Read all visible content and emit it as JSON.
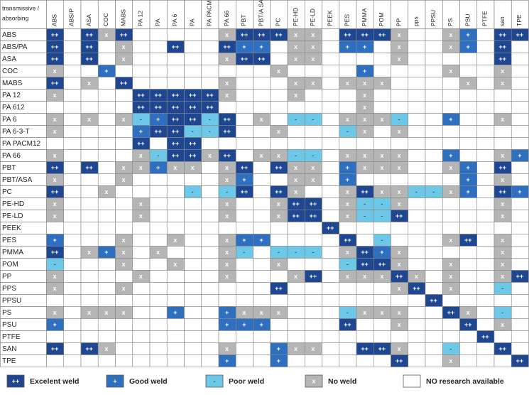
{
  "table": {
    "corner": [
      "transmissive /",
      "absorbing"
    ],
    "columns": [
      "ABS",
      "ABS/P",
      "ASA",
      "COC",
      "MABS",
      "PA 12",
      "PA",
      "PA 6",
      "PA",
      "PA PACM",
      "PA 66",
      "PBT",
      "PBT/A SA",
      "PC",
      "PE-HD",
      "PE-LD",
      "PEEK",
      "PES",
      "PMMA",
      "POM",
      "PP",
      "pps",
      "PPSU",
      "PS",
      "PSU",
      "PTFE",
      "san",
      "TPE"
    ],
    "rows": [
      {
        "label": "ABS",
        "cells": [
          "++",
          null,
          "++",
          "x",
          "++",
          null,
          null,
          null,
          null,
          null,
          "x",
          "++",
          "++",
          "++",
          "x",
          "x",
          null,
          "++",
          "++",
          "++",
          "x",
          null,
          null,
          "x",
          "+",
          null,
          "++",
          "++"
        ]
      },
      {
        "label": "ABS/PA",
        "cells": [
          "++",
          null,
          "++",
          null,
          "x",
          null,
          null,
          "++",
          null,
          null,
          "++",
          "+",
          "+",
          null,
          "x",
          "x",
          null,
          "+",
          "+",
          null,
          "x",
          null,
          null,
          "x",
          "+",
          null,
          "++",
          null
        ]
      },
      {
        "label": "ASA",
        "cells": [
          "++",
          null,
          "++",
          null,
          "x",
          null,
          null,
          null,
          null,
          null,
          "x",
          "++",
          "++",
          null,
          "x",
          "x",
          null,
          null,
          null,
          null,
          "x",
          null,
          null,
          null,
          null,
          null,
          "++",
          null
        ]
      },
      {
        "label": "COC",
        "cells": [
          "x",
          null,
          null,
          "+",
          null,
          null,
          null,
          null,
          null,
          null,
          null,
          null,
          null,
          "x",
          null,
          null,
          null,
          null,
          "+",
          null,
          null,
          null,
          null,
          "x",
          null,
          null,
          "x",
          null
        ]
      },
      {
        "label": "MABS",
        "cells": [
          "++",
          null,
          "x",
          null,
          "++",
          null,
          null,
          null,
          null,
          null,
          "x",
          null,
          null,
          null,
          "x",
          "x",
          null,
          "x",
          "x",
          "x",
          null,
          null,
          null,
          null,
          "x",
          null,
          "x",
          null
        ]
      },
      {
        "label": "PA 12",
        "cells": [
          "x",
          null,
          null,
          null,
          null,
          "++",
          "++",
          "++",
          "++",
          "++",
          "x",
          null,
          null,
          null,
          "x",
          null,
          null,
          null,
          "x",
          null,
          null,
          null,
          null,
          null,
          null,
          null,
          null,
          null
        ]
      },
      {
        "label": "PA 612",
        "cells": [
          null,
          null,
          null,
          null,
          null,
          "++",
          "++",
          "++",
          "++",
          "++",
          null,
          null,
          null,
          null,
          null,
          null,
          null,
          null,
          "x",
          null,
          null,
          null,
          null,
          null,
          null,
          null,
          null,
          null
        ]
      },
      {
        "label": "PA 6",
        "cells": [
          "x",
          null,
          "x",
          null,
          "x",
          "-",
          "+",
          "++",
          "++",
          "-",
          "++",
          null,
          "x",
          null,
          "-",
          "-",
          null,
          "x",
          "x",
          "x",
          "-",
          null,
          null,
          "+",
          null,
          null,
          "x",
          null
        ]
      },
      {
        "label": "PA 6-3-T",
        "cells": [
          "x",
          null,
          null,
          null,
          null,
          "+",
          "++",
          "++",
          "-",
          "-",
          "++",
          null,
          null,
          "x",
          null,
          null,
          null,
          "-",
          "x",
          null,
          "x",
          null,
          null,
          null,
          null,
          null,
          null,
          null
        ]
      },
      {
        "label": "PA PACM12",
        "cells": [
          null,
          null,
          null,
          null,
          null,
          "++",
          null,
          "++",
          "++",
          null,
          null,
          null,
          null,
          null,
          null,
          null,
          null,
          null,
          null,
          null,
          null,
          null,
          null,
          null,
          null,
          null,
          null,
          null
        ]
      },
      {
        "label": "PA 66",
        "cells": [
          "x",
          null,
          null,
          null,
          null,
          "x",
          "-",
          "++",
          "++",
          "x",
          "++",
          null,
          "x",
          "x",
          "-",
          "-",
          null,
          "x",
          "x",
          "x",
          "x",
          null,
          null,
          "+",
          null,
          null,
          "x",
          "+"
        ]
      },
      {
        "label": "PBT",
        "cells": [
          "++",
          null,
          "++",
          null,
          "x",
          "x",
          "+",
          "x",
          "x",
          null,
          "x",
          "++",
          null,
          "++",
          "x",
          "x",
          null,
          "+",
          "x",
          "x",
          "x",
          null,
          null,
          "x",
          "+",
          null,
          "++",
          null
        ]
      },
      {
        "label": "PBT/ASA",
        "cells": [
          "x",
          null,
          null,
          null,
          "x",
          null,
          null,
          null,
          null,
          null,
          "x",
          "+",
          null,
          null,
          "x",
          "x",
          null,
          "+",
          null,
          null,
          null,
          null,
          null,
          null,
          "+",
          null,
          "x",
          null
        ]
      },
      {
        "label": "PC",
        "cells": [
          "++",
          null,
          null,
          "x",
          null,
          null,
          null,
          null,
          "-",
          null,
          "-",
          "++",
          null,
          "++",
          "x",
          null,
          null,
          "x",
          "++",
          "x",
          "x",
          "-",
          "-",
          "x",
          "+",
          null,
          "++",
          "+"
        ]
      },
      {
        "label": "PE-HD",
        "cells": [
          "x",
          null,
          null,
          null,
          null,
          "x",
          null,
          null,
          null,
          null,
          "x",
          null,
          null,
          "x",
          "++",
          "++",
          null,
          "x",
          "-",
          "-",
          "x",
          null,
          null,
          null,
          null,
          null,
          "x",
          null
        ]
      },
      {
        "label": "PE-LD",
        "cells": [
          "x",
          null,
          null,
          null,
          null,
          "x",
          null,
          null,
          null,
          null,
          "x",
          null,
          null,
          "x",
          "++",
          "++",
          null,
          "x",
          "-",
          "-",
          "++",
          null,
          null,
          null,
          null,
          null,
          "x",
          null
        ]
      },
      {
        "label": "PEEK",
        "cells": [
          null,
          null,
          null,
          null,
          null,
          null,
          null,
          null,
          null,
          null,
          null,
          null,
          null,
          null,
          null,
          null,
          "++",
          null,
          null,
          null,
          null,
          null,
          null,
          null,
          null,
          null,
          null,
          null
        ]
      },
      {
        "label": "PES",
        "cells": [
          "+",
          null,
          null,
          null,
          "x",
          null,
          null,
          "x",
          null,
          null,
          "x",
          "+",
          "+",
          null,
          null,
          null,
          null,
          "++",
          null,
          "-",
          null,
          null,
          null,
          "x",
          "++",
          null,
          "x",
          null
        ]
      },
      {
        "label": "PMMA",
        "cells": [
          "++",
          null,
          "x",
          "+",
          "x",
          null,
          "x",
          null,
          null,
          null,
          "x",
          "-",
          null,
          "-",
          "-",
          "-",
          null,
          "x",
          "++",
          "+",
          "x",
          null,
          null,
          null,
          null,
          null,
          "x",
          null
        ]
      },
      {
        "label": "POM",
        "cells": [
          "-",
          null,
          null,
          null,
          "x",
          null,
          null,
          "x",
          null,
          null,
          "x",
          null,
          null,
          "x",
          null,
          null,
          null,
          "-",
          "++",
          "++",
          "x",
          null,
          null,
          "x",
          null,
          null,
          "x",
          null
        ]
      },
      {
        "label": "PP",
        "cells": [
          "x",
          null,
          null,
          null,
          null,
          "x",
          null,
          null,
          null,
          null,
          "x",
          null,
          null,
          null,
          "x",
          "++",
          null,
          "x",
          "x",
          "x",
          "++",
          "x",
          null,
          "x",
          null,
          null,
          "x",
          "++"
        ]
      },
      {
        "label": "PPS",
        "cells": [
          "x",
          null,
          null,
          null,
          "x",
          null,
          null,
          null,
          null,
          null,
          null,
          null,
          null,
          "++",
          null,
          null,
          null,
          null,
          null,
          null,
          "x",
          "++",
          null,
          "x",
          null,
          null,
          "-",
          null
        ]
      },
      {
        "label": "PPSU",
        "cells": [
          null,
          null,
          null,
          null,
          null,
          null,
          null,
          null,
          null,
          null,
          null,
          null,
          null,
          null,
          null,
          null,
          null,
          null,
          null,
          null,
          null,
          null,
          "++",
          null,
          null,
          null,
          null,
          null
        ]
      },
      {
        "label": "PS",
        "cells": [
          "x",
          null,
          "x",
          "x",
          "x",
          null,
          null,
          "+",
          null,
          null,
          "+",
          "x",
          "x",
          "x",
          null,
          null,
          null,
          "-",
          "x",
          "x",
          "x",
          null,
          null,
          "++",
          "x",
          null,
          "-",
          null
        ]
      },
      {
        "label": "PSU",
        "cells": [
          "+",
          null,
          null,
          null,
          null,
          null,
          null,
          null,
          null,
          null,
          "+",
          "+",
          "+",
          null,
          null,
          null,
          null,
          "++",
          null,
          null,
          "x",
          null,
          null,
          null,
          "++",
          null,
          "x",
          null
        ]
      },
      {
        "label": "PTFE",
        "cells": [
          null,
          null,
          null,
          null,
          null,
          null,
          null,
          null,
          null,
          null,
          null,
          null,
          null,
          null,
          null,
          null,
          null,
          null,
          null,
          null,
          null,
          null,
          null,
          null,
          null,
          "++",
          null,
          null
        ]
      },
      {
        "label": "SAN",
        "cells": [
          "++",
          null,
          "++",
          "x",
          null,
          null,
          null,
          null,
          null,
          null,
          "x",
          null,
          null,
          "+",
          "x",
          "x",
          null,
          null,
          "++",
          "++",
          "x",
          null,
          null,
          "-",
          null,
          null,
          "++",
          null
        ]
      },
      {
        "label": "TPE",
        "cells": [
          null,
          null,
          null,
          null,
          null,
          null,
          null,
          null,
          null,
          null,
          "+",
          null,
          null,
          "+",
          null,
          null,
          null,
          null,
          null,
          null,
          "++",
          null,
          null,
          "x",
          null,
          null,
          null,
          "++"
        ]
      }
    ]
  },
  "legend": [
    {
      "symbol": "++",
      "label": "Excelent weld",
      "color": "#1f4690"
    },
    {
      "symbol": "+",
      "label": "Good weld",
      "color": "#2f6fc0"
    },
    {
      "symbol": "-",
      "label": "Poor weld",
      "color": "#6cc8e6"
    },
    {
      "symbol": "x",
      "label": "No weld",
      "color": "#b5b5b5"
    },
    {
      "label": "NO research available",
      "color": "#ffffff"
    }
  ]
}
